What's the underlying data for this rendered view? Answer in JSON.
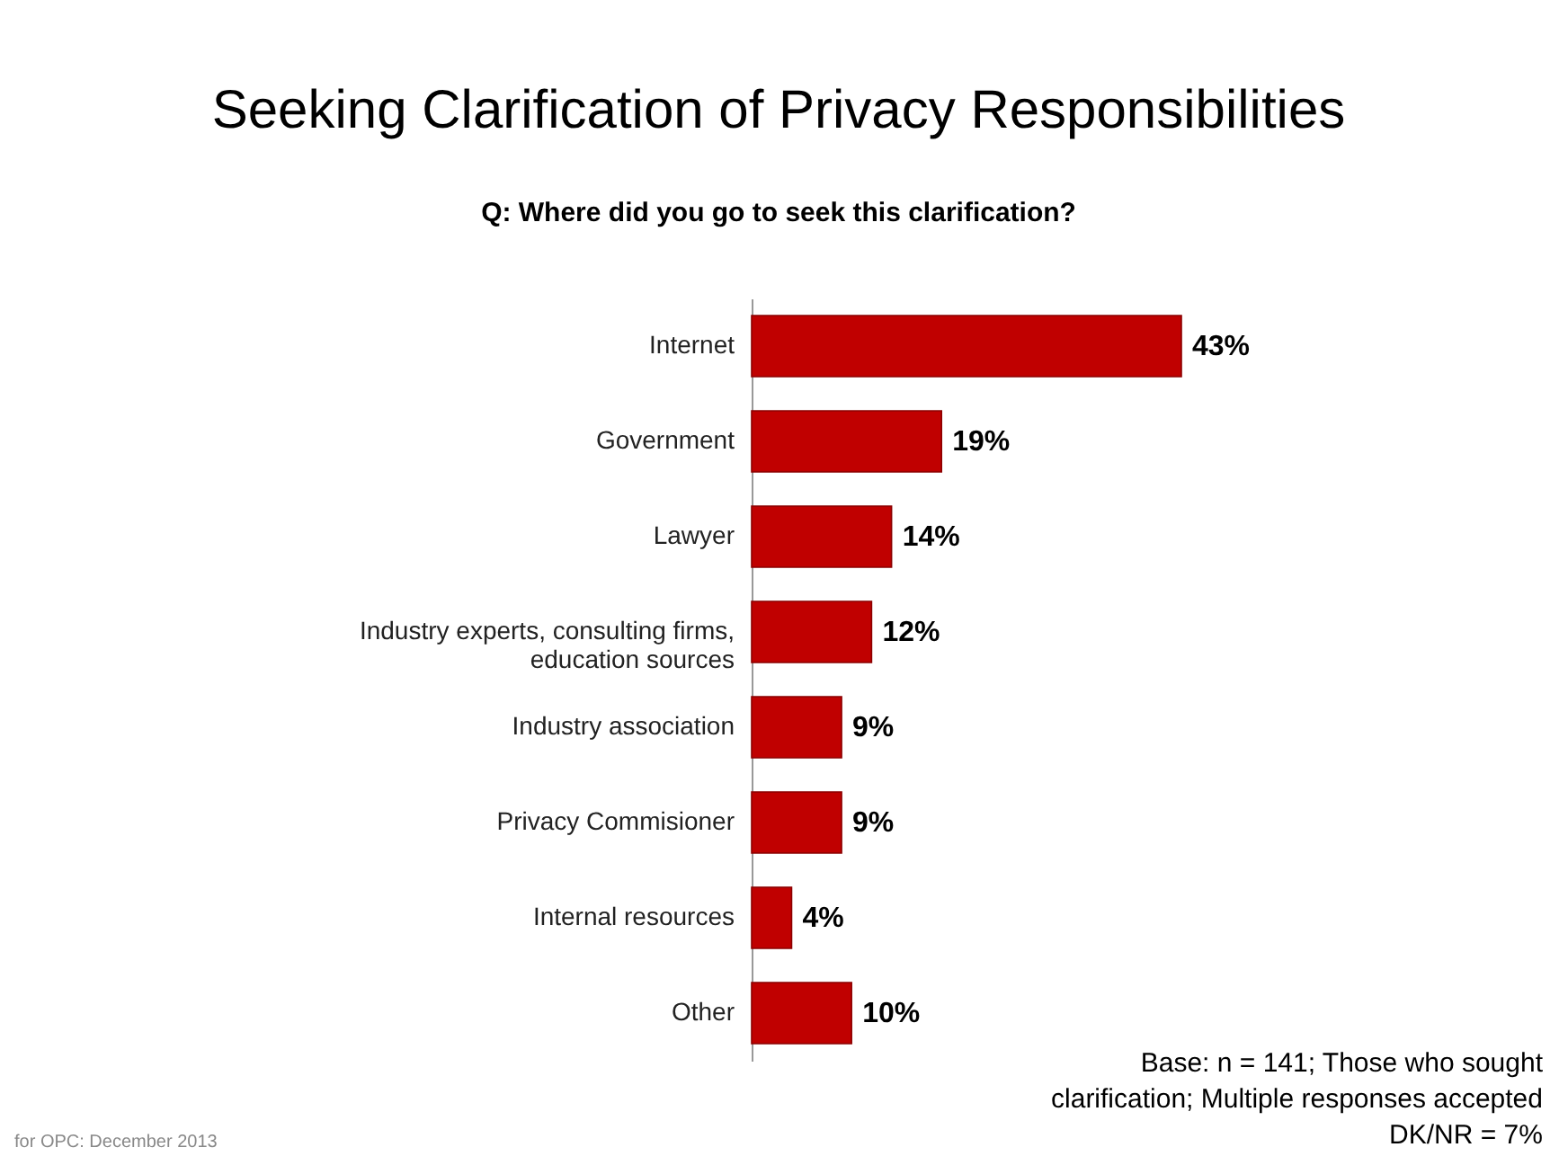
{
  "chart_data": {
    "type": "bar",
    "orientation": "horizontal",
    "title": "Seeking Clarification of Privacy Responsibilities",
    "subtitle": "Q: Where did you go to seek this clarification?",
    "categories": [
      "Internet",
      "Government",
      "Lawyer",
      "Industry experts, consulting firms, education sources",
      "Industry association",
      "Privacy Commisioner",
      "Internal resources",
      "Other"
    ],
    "values": [
      43,
      19,
      14,
      12,
      9,
      9,
      4,
      10
    ],
    "value_labels": [
      "43%",
      "19%",
      "14%",
      "12%",
      "9%",
      "9%",
      "4%",
      "10%"
    ],
    "color": "#c00000",
    "grid": false,
    "annotations": [
      "Base: n = 141; Those who sought clarification; Multiple responses accepted DK/NR = 7%",
      "for OPC: December 2013"
    ]
  }
}
